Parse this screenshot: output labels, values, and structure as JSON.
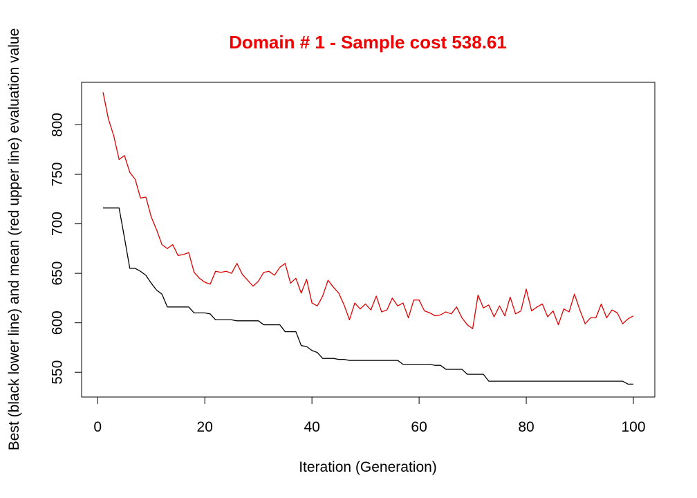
{
  "chart_data": {
    "type": "line",
    "title": "Domain # 1  - Sample cost 538.61",
    "xlabel": "Iteration (Generation)",
    "ylabel": "Best (black lower line) and mean (red upper line) evaluation value",
    "xlim": [
      -3,
      104
    ],
    "ylim": [
      525,
      843
    ],
    "xticks": [
      0,
      20,
      40,
      60,
      80,
      100
    ],
    "yticks": [
      550,
      600,
      650,
      700,
      750,
      800
    ],
    "grid": false,
    "legend": "none",
    "x": [
      1,
      2,
      3,
      4,
      5,
      6,
      7,
      8,
      9,
      10,
      11,
      12,
      13,
      14,
      15,
      16,
      17,
      18,
      19,
      20,
      21,
      22,
      23,
      24,
      25,
      26,
      27,
      28,
      29,
      30,
      31,
      32,
      33,
      34,
      35,
      36,
      37,
      38,
      39,
      40,
      41,
      42,
      43,
      44,
      45,
      46,
      47,
      48,
      49,
      50,
      51,
      52,
      53,
      54,
      55,
      56,
      57,
      58,
      59,
      60,
      61,
      62,
      63,
      64,
      65,
      66,
      67,
      68,
      69,
      70,
      71,
      72,
      73,
      74,
      75,
      76,
      77,
      78,
      79,
      80,
      81,
      82,
      83,
      84,
      85,
      86,
      87,
      88,
      89,
      90,
      91,
      92,
      93,
      94,
      95,
      96,
      97,
      98,
      99,
      100
    ],
    "series": [
      {
        "color": "#000000",
        "values": [
          716,
          716,
          716,
          716,
          686,
          655,
          655,
          652,
          648,
          640,
          633,
          629,
          616,
          616,
          616,
          616,
          616,
          610,
          610,
          610,
          609,
          603,
          603,
          603,
          603,
          602,
          602,
          602,
          602,
          602,
          598,
          598,
          598,
          598,
          591,
          591,
          591,
          577,
          576,
          572,
          570,
          564,
          564,
          564,
          563,
          563,
          562,
          562,
          562,
          562,
          562,
          562,
          562,
          562,
          562,
          562,
          558,
          558,
          558,
          558,
          558,
          558,
          557,
          557,
          553,
          553,
          553,
          553,
          548,
          548,
          548,
          548,
          541,
          541,
          541,
          541,
          541,
          541,
          541,
          541,
          541,
          541,
          541,
          541,
          541,
          541,
          541,
          541,
          541,
          541,
          541,
          541,
          541,
          541,
          541,
          541,
          541,
          541,
          538,
          538
        ]
      },
      {
        "color": "#dd0000",
        "values": [
          833,
          806,
          789,
          765,
          769,
          752,
          745,
          726,
          727,
          707,
          694,
          679,
          675,
          679,
          668,
          669,
          671,
          651,
          645,
          641,
          639,
          652,
          651,
          652,
          650,
          660,
          649,
          643,
          637,
          642,
          651,
          652,
          648,
          656,
          660,
          640,
          645,
          630,
          644,
          620,
          617,
          627,
          643,
          636,
          630,
          618,
          603,
          620,
          614,
          619,
          613,
          627,
          611,
          613,
          625,
          617,
          620,
          605,
          623,
          623,
          612,
          610,
          607,
          608,
          611,
          609,
          616,
          605,
          598,
          594,
          628,
          615,
          618,
          606,
          617,
          607,
          626,
          609,
          612,
          634,
          612,
          616,
          619,
          606,
          612,
          598,
          614,
          611,
          629,
          613,
          599,
          605,
          605,
          619,
          605,
          613,
          610,
          599,
          604,
          607
        ]
      }
    ]
  }
}
